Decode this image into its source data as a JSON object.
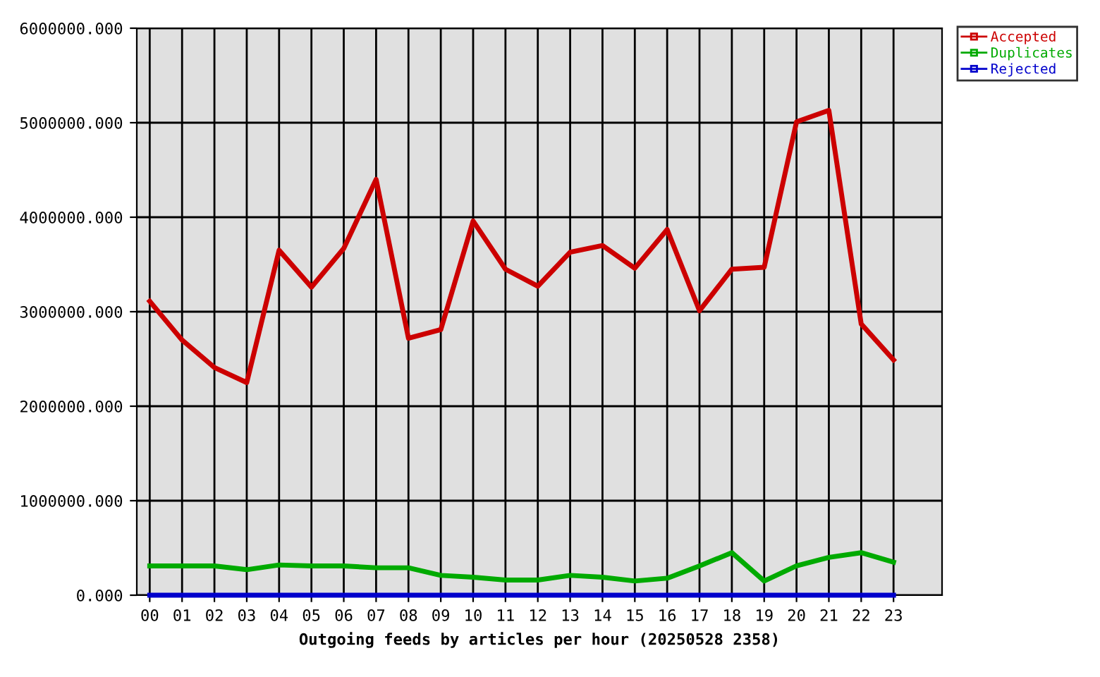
{
  "chart_data": {
    "type": "line",
    "xlabel": "Outgoing feeds by articles per hour (20250528 2358)",
    "categories": [
      "00",
      "01",
      "02",
      "03",
      "04",
      "05",
      "06",
      "07",
      "08",
      "09",
      "10",
      "11",
      "12",
      "13",
      "14",
      "15",
      "16",
      "17",
      "18",
      "19",
      "20",
      "21",
      "22",
      "23"
    ],
    "series": [
      {
        "name": "Accepted",
        "color": "#cc0000",
        "values": [
          3110000,
          2700000,
          2410000,
          2250000,
          3650000,
          3260000,
          3670000,
          4400000,
          2720000,
          2810000,
          3960000,
          3450000,
          3270000,
          3630000,
          3700000,
          3460000,
          3870000,
          3010000,
          3450000,
          3470000,
          5010000,
          5130000,
          2870000,
          2490000
        ]
      },
      {
        "name": "Duplicates",
        "color": "#00aa00",
        "values": [
          310000,
          310000,
          310000,
          270000,
          320000,
          310000,
          310000,
          290000,
          290000,
          210000,
          190000,
          160000,
          160000,
          210000,
          190000,
          150000,
          180000,
          310000,
          450000,
          150000,
          310000,
          400000,
          450000,
          350000
        ]
      },
      {
        "name": "Rejected",
        "color": "#0000cc",
        "values": [
          0,
          0,
          0,
          0,
          0,
          0,
          0,
          0,
          0,
          0,
          0,
          0,
          0,
          0,
          0,
          0,
          0,
          0,
          0,
          0,
          0,
          0,
          0,
          0
        ]
      }
    ],
    "ylim": [
      0,
      6000000
    ],
    "yticks": [
      {
        "value": 0,
        "label": "0.000"
      },
      {
        "value": 1000000,
        "label": "1000000.000"
      },
      {
        "value": 2000000,
        "label": "2000000.000"
      },
      {
        "value": 3000000,
        "label": "3000000.000"
      },
      {
        "value": 4000000,
        "label": "4000000.000"
      },
      {
        "value": 5000000,
        "label": "5000000.000"
      },
      {
        "value": 6000000,
        "label": "6000000.000"
      }
    ],
    "grid": true,
    "legend": "top right",
    "line_style": "solid"
  }
}
